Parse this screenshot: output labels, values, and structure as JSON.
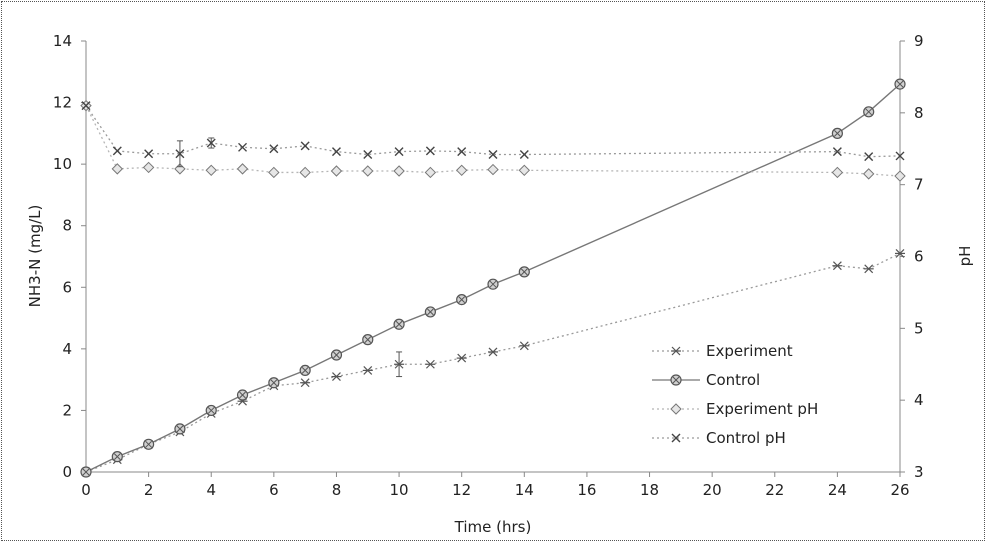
{
  "chart_data": {
    "type": "line",
    "xlabel": "Time (hrs)",
    "ylabel": "NH3-N (mg/L)",
    "y2label": "pH",
    "xlim": [
      0,
      26
    ],
    "ylim": [
      0,
      14
    ],
    "y2lim": [
      3,
      9
    ],
    "xticks": [
      "0",
      "2",
      "4",
      "6",
      "8",
      "10",
      "12",
      "14",
      "16",
      "18",
      "20",
      "22",
      "24",
      "26"
    ],
    "yticks": [
      "0",
      "2",
      "4",
      "6",
      "8",
      "10",
      "12",
      "14"
    ],
    "y2ticks": [
      "3",
      "4",
      "5",
      "6",
      "7",
      "8",
      "9"
    ],
    "grid": false,
    "legend_position": "bottom-right",
    "series": [
      {
        "name": "Experiment",
        "axis": "left",
        "marker": "star",
        "line": "dotted",
        "x": [
          0,
          1,
          2,
          3,
          4,
          5,
          6,
          7,
          8,
          9,
          10,
          11,
          12,
          13,
          14,
          24,
          25,
          26
        ],
        "y": [
          0,
          0.4,
          0.9,
          1.3,
          1.9,
          2.3,
          2.8,
          2.9,
          3.1,
          3.3,
          3.5,
          3.5,
          3.7,
          3.9,
          4.1,
          6.7,
          6.6,
          7.1
        ],
        "error_at_x": [
          10
        ],
        "error_size": [
          0.4
        ]
      },
      {
        "name": "Control",
        "axis": "left",
        "marker": "circle",
        "line": "solid",
        "x": [
          0,
          1,
          2,
          3,
          4,
          5,
          6,
          7,
          8,
          9,
          10,
          11,
          12,
          13,
          14,
          24,
          25,
          26
        ],
        "y": [
          0,
          0.5,
          0.9,
          1.4,
          2.0,
          2.5,
          2.9,
          3.3,
          3.8,
          4.3,
          4.8,
          5.2,
          5.6,
          6.1,
          6.5,
          11.0,
          11.7,
          12.6
        ]
      },
      {
        "name": "Experiment pH",
        "axis": "right",
        "marker": "diamond",
        "line": "dotted",
        "x": [
          0,
          1,
          2,
          3,
          4,
          5,
          6,
          7,
          8,
          9,
          10,
          11,
          12,
          13,
          14,
          24,
          25,
          26
        ],
        "y": [
          8.1,
          7.22,
          7.24,
          7.22,
          7.2,
          7.22,
          7.17,
          7.17,
          7.19,
          7.19,
          7.19,
          7.17,
          7.2,
          7.21,
          7.2,
          7.17,
          7.15,
          7.12
        ]
      },
      {
        "name": "Control pH",
        "axis": "right",
        "marker": "x",
        "line": "dotted",
        "x": [
          0,
          1,
          2,
          3,
          4,
          5,
          6,
          7,
          8,
          9,
          10,
          11,
          12,
          13,
          14,
          24,
          25,
          26
        ],
        "y": [
          8.1,
          7.47,
          7.43,
          7.43,
          7.58,
          7.52,
          7.5,
          7.54,
          7.46,
          7.42,
          7.46,
          7.47,
          7.46,
          7.42,
          7.42,
          7.46,
          7.39,
          7.4
        ],
        "error_at_x": [
          3,
          4
        ],
        "error_size": [
          0.18,
          0.07
        ]
      }
    ]
  }
}
